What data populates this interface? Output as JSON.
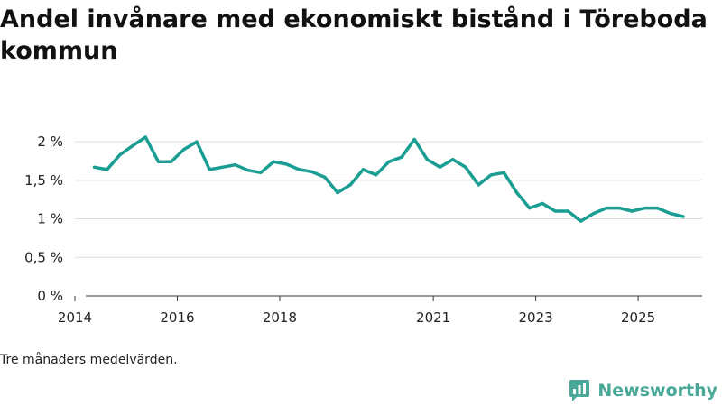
{
  "title": "Andel invånare med ekonomiskt bistånd i Töreboda kommun",
  "note": "Tre månaders medelvärden.",
  "brand": "Newsworthy",
  "colors": {
    "line": "#1a9e94",
    "grid": "#dddddd",
    "axis": "#333333",
    "brand": "#4aa898"
  },
  "chart_data": {
    "type": "line",
    "title": "Andel invånare med ekonomiskt bistånd i Töreboda kommun",
    "xlabel": "",
    "ylabel": "",
    "xlim": [
      2014.0,
      2026.25
    ],
    "ylim": [
      0,
      2.2
    ],
    "grid": true,
    "x_ticks": [
      2014,
      2016,
      2018,
      2021,
      2023,
      2025
    ],
    "x_tick_labels": [
      "2014",
      "2016",
      "2018",
      "2021",
      "2023",
      "2025"
    ],
    "y_ticks": [
      0,
      0.5,
      1,
      1.5,
      2
    ],
    "y_tick_labels": [
      "0 %",
      "0,5 %",
      "1 %",
      "1,5 %",
      "2 %"
    ],
    "series": [
      {
        "name": "Andel invånare med ekonomiskt bistånd",
        "x": [
          2014.38,
          2014.63,
          2014.88,
          2015.13,
          2015.38,
          2015.63,
          2015.88,
          2016.13,
          2016.38,
          2016.63,
          2016.88,
          2017.13,
          2017.38,
          2017.63,
          2017.88,
          2018.13,
          2018.38,
          2018.63,
          2018.88,
          2019.13,
          2019.38,
          2019.63,
          2019.88,
          2020.13,
          2020.38,
          2020.63,
          2020.88,
          2021.13,
          2021.38,
          2021.63,
          2021.88,
          2022.13,
          2022.38,
          2022.63,
          2022.88,
          2023.13,
          2023.38,
          2023.63,
          2023.88,
          2024.13,
          2024.38,
          2024.63,
          2024.88,
          2025.13,
          2025.38,
          2025.63,
          2025.88
        ],
        "values": [
          1.67,
          1.64,
          1.83,
          1.95,
          2.06,
          1.74,
          1.74,
          1.9,
          2.0,
          1.64,
          1.67,
          1.7,
          1.63,
          1.6,
          1.74,
          1.71,
          1.64,
          1.61,
          1.54,
          1.34,
          1.44,
          1.64,
          1.57,
          1.74,
          1.8,
          2.03,
          1.77,
          1.67,
          1.77,
          1.67,
          1.44,
          1.57,
          1.6,
          1.34,
          1.14,
          1.2,
          1.1,
          1.1,
          0.97,
          1.07,
          1.14,
          1.14,
          1.1,
          1.14,
          1.14,
          1.07,
          1.03
        ]
      }
    ]
  }
}
